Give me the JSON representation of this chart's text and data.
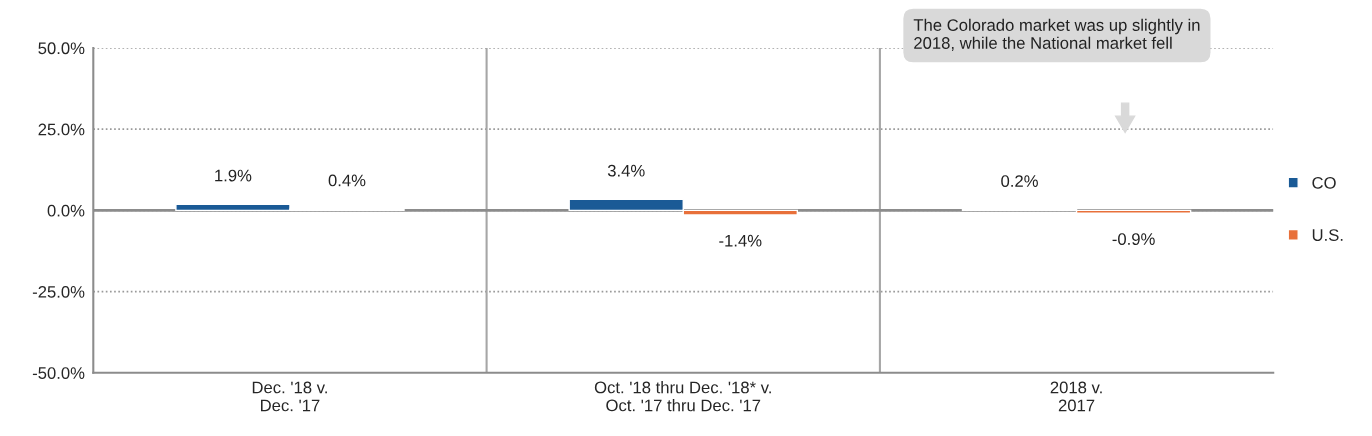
{
  "chart_data": {
    "type": "bar",
    "categories": [
      "Dec. '18 v.\nDec. '17",
      "Oct. '18 thru Dec. '18* v.\nOct. '17 thru Dec. '17",
      "2018 v.\n2017"
    ],
    "series": [
      {
        "name": "CO",
        "color": "#1a5a96",
        "values": [
          1.9,
          3.4,
          0.2
        ],
        "value_labels": [
          "1.9%",
          "3.4%",
          "0.2%"
        ]
      },
      {
        "name": "U.S.",
        "color": "#e8703a",
        "values": [
          0.4,
          -1.4,
          -0.9
        ],
        "value_labels": [
          "0.4%",
          "-1.4%",
          "-0.9%"
        ]
      }
    ],
    "ylim": [
      -50,
      50
    ],
    "yticks": [
      {
        "value": -50,
        "label": "-50.0%"
      },
      {
        "value": -25,
        "label": "-25.0%"
      },
      {
        "value": 0,
        "label": "0.0%"
      },
      {
        "value": 25,
        "label": "25.0%"
      },
      {
        "value": 50,
        "label": "50.0%"
      }
    ],
    "grid": true,
    "legend": "right",
    "annotations": [
      "The Colorado market was up slightly in\n2018, while the National market fell"
    ]
  }
}
